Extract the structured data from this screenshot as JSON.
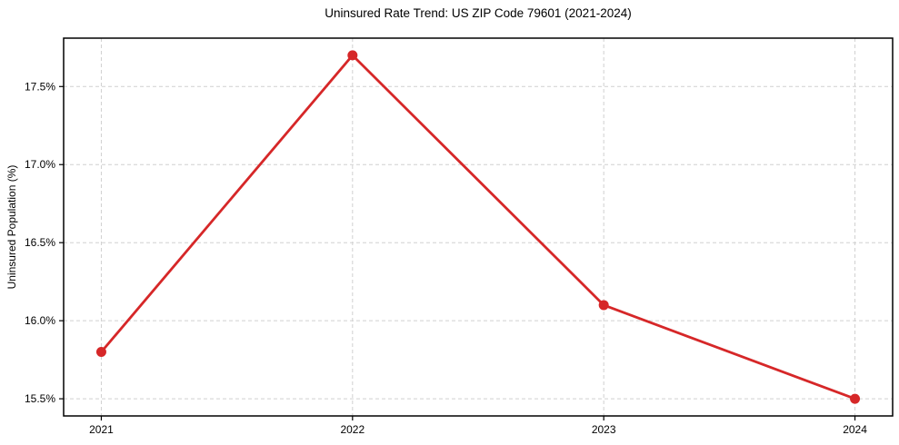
{
  "chart_data": {
    "type": "line",
    "title": "Uninsured Rate Trend: US ZIP Code 79601 (2021-2024)",
    "xlabel": "",
    "ylabel": "Uninsured Population (%)",
    "x": [
      2021,
      2022,
      2023,
      2024
    ],
    "values": [
      15.8,
      17.7,
      16.1,
      15.5
    ],
    "series_name": "uninsured-rate",
    "xlim": [
      2020.85,
      2024.15
    ],
    "ylim": [
      15.39,
      17.81
    ],
    "xticks": [
      2021,
      2022,
      2023,
      2024
    ],
    "xtick_labels": [
      "2021",
      "2022",
      "2023",
      "2024"
    ],
    "yticks": [
      15.5,
      16.0,
      16.5,
      17.0,
      17.5
    ],
    "ytick_labels": [
      "15.5%",
      "16.0%",
      "16.5%",
      "17.0%",
      "17.5%"
    ],
    "grid": true,
    "grid_style": "dashed",
    "legend": false,
    "line_color": "#d62728",
    "marker_color": "#d62728",
    "grid_color": "#d0d0d0",
    "spine_color": "#000000",
    "tick_color": "#000000"
  }
}
